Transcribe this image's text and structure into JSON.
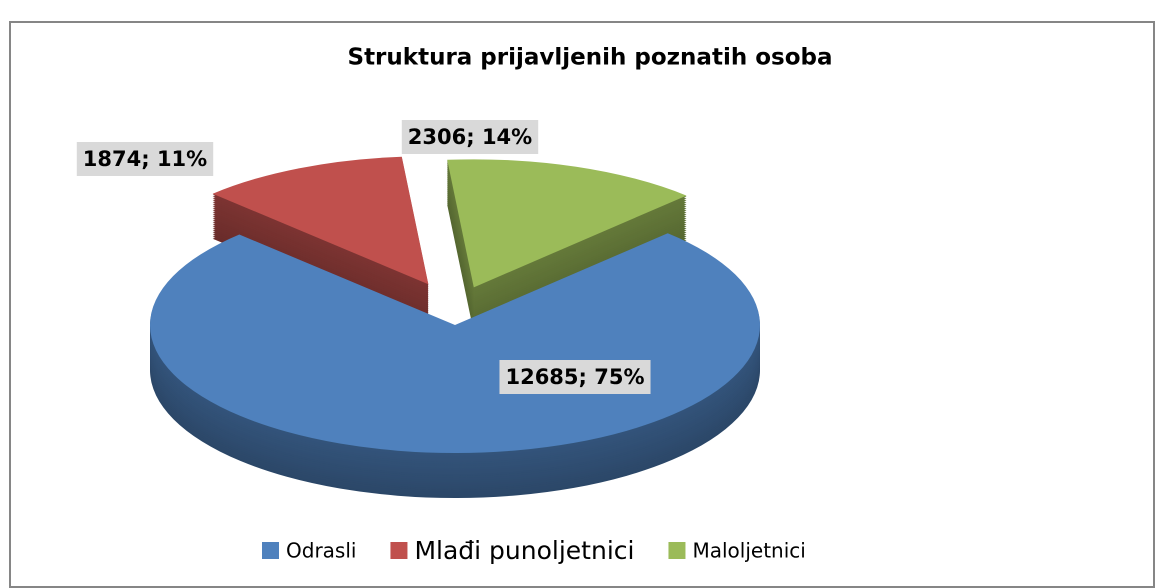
{
  "chart_data": {
    "type": "pie",
    "title": "Struktura prijavljenih poznatih osoba",
    "categories": [
      "Odrasli",
      "Mlađi punoljetnici",
      "Maloljetnici"
    ],
    "values": [
      12685,
      1874,
      2306
    ],
    "value_labels": [
      "12685; 75%",
      "1874; 11%",
      "2306; 14%"
    ],
    "colors": [
      "#4f81bd",
      "#c0504d",
      "#9bbb59"
    ],
    "legend": "bottom"
  }
}
